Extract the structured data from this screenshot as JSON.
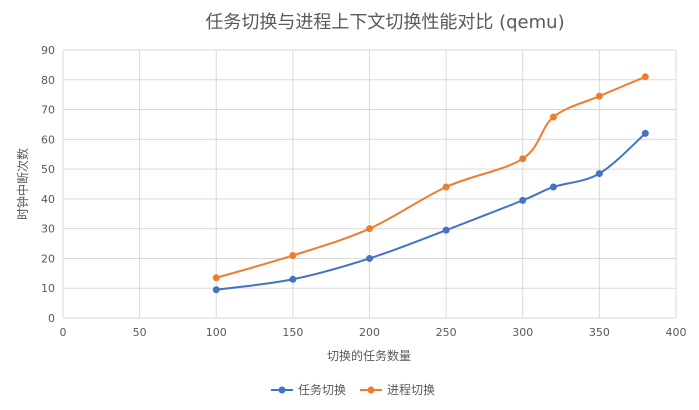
{
  "chart_data": {
    "type": "line",
    "title": "任务切换与进程上下文切换性能对比 (qemu)",
    "xlabel": "切换的任务数量",
    "ylabel": "时钟中断次数",
    "xlim": [
      0,
      400
    ],
    "ylim": [
      0,
      90
    ],
    "xticks": [
      "0",
      "50",
      "100",
      "150",
      "200",
      "250",
      "300",
      "350",
      "400"
    ],
    "yticks": [
      "0",
      "10",
      "20",
      "30",
      "40",
      "50",
      "60",
      "70",
      "80",
      "90"
    ],
    "grid": true,
    "legend_position": "bottom",
    "x": [
      100,
      150,
      200,
      250,
      300,
      320,
      350,
      380
    ],
    "series": [
      {
        "name": "任务切换",
        "color": "#4472C4",
        "values": [
          9.5,
          13,
          20,
          29.5,
          39.5,
          44,
          48.5,
          62
        ]
      },
      {
        "name": "进程切换",
        "color": "#ED7D31",
        "values": [
          13.5,
          21,
          30,
          44,
          53.5,
          67.5,
          74.5,
          81
        ]
      }
    ]
  }
}
